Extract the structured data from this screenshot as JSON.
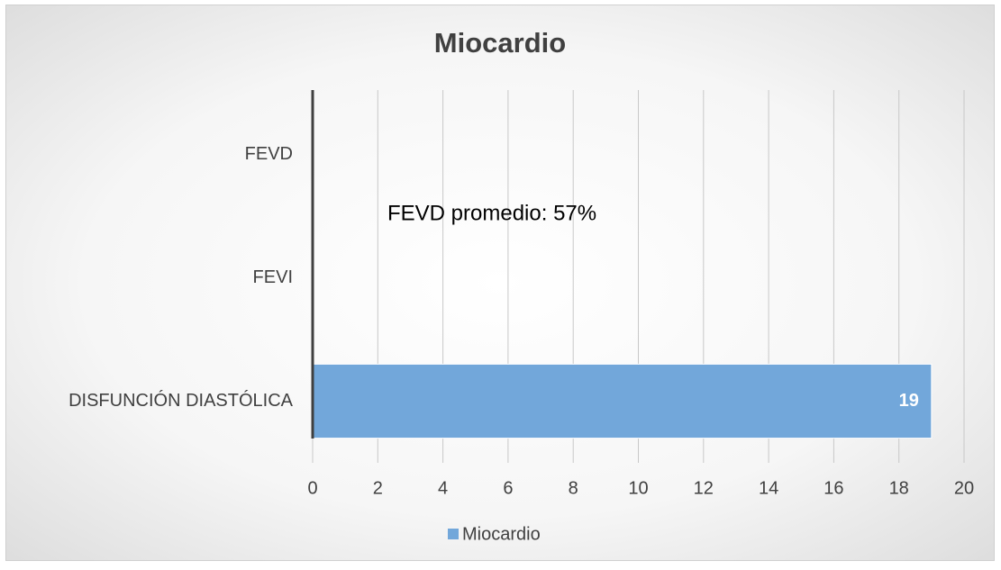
{
  "chart_data": {
    "type": "hbar",
    "title": "Miocardio",
    "categories": [
      "FEVD",
      "FEVI",
      "DISFUNCIÓN DIASTÓLICA"
    ],
    "series": [
      {
        "name": "Miocardio",
        "color": "#72a7da",
        "values": [
          null,
          null,
          19
        ]
      }
    ],
    "xlim": [
      0,
      20
    ],
    "xticks": [
      0,
      2,
      4,
      6,
      8,
      10,
      12,
      14,
      16,
      18,
      20
    ],
    "grid": true,
    "annotations": [
      "FEVD promedio: 57%"
    ],
    "legend": "bottom"
  }
}
